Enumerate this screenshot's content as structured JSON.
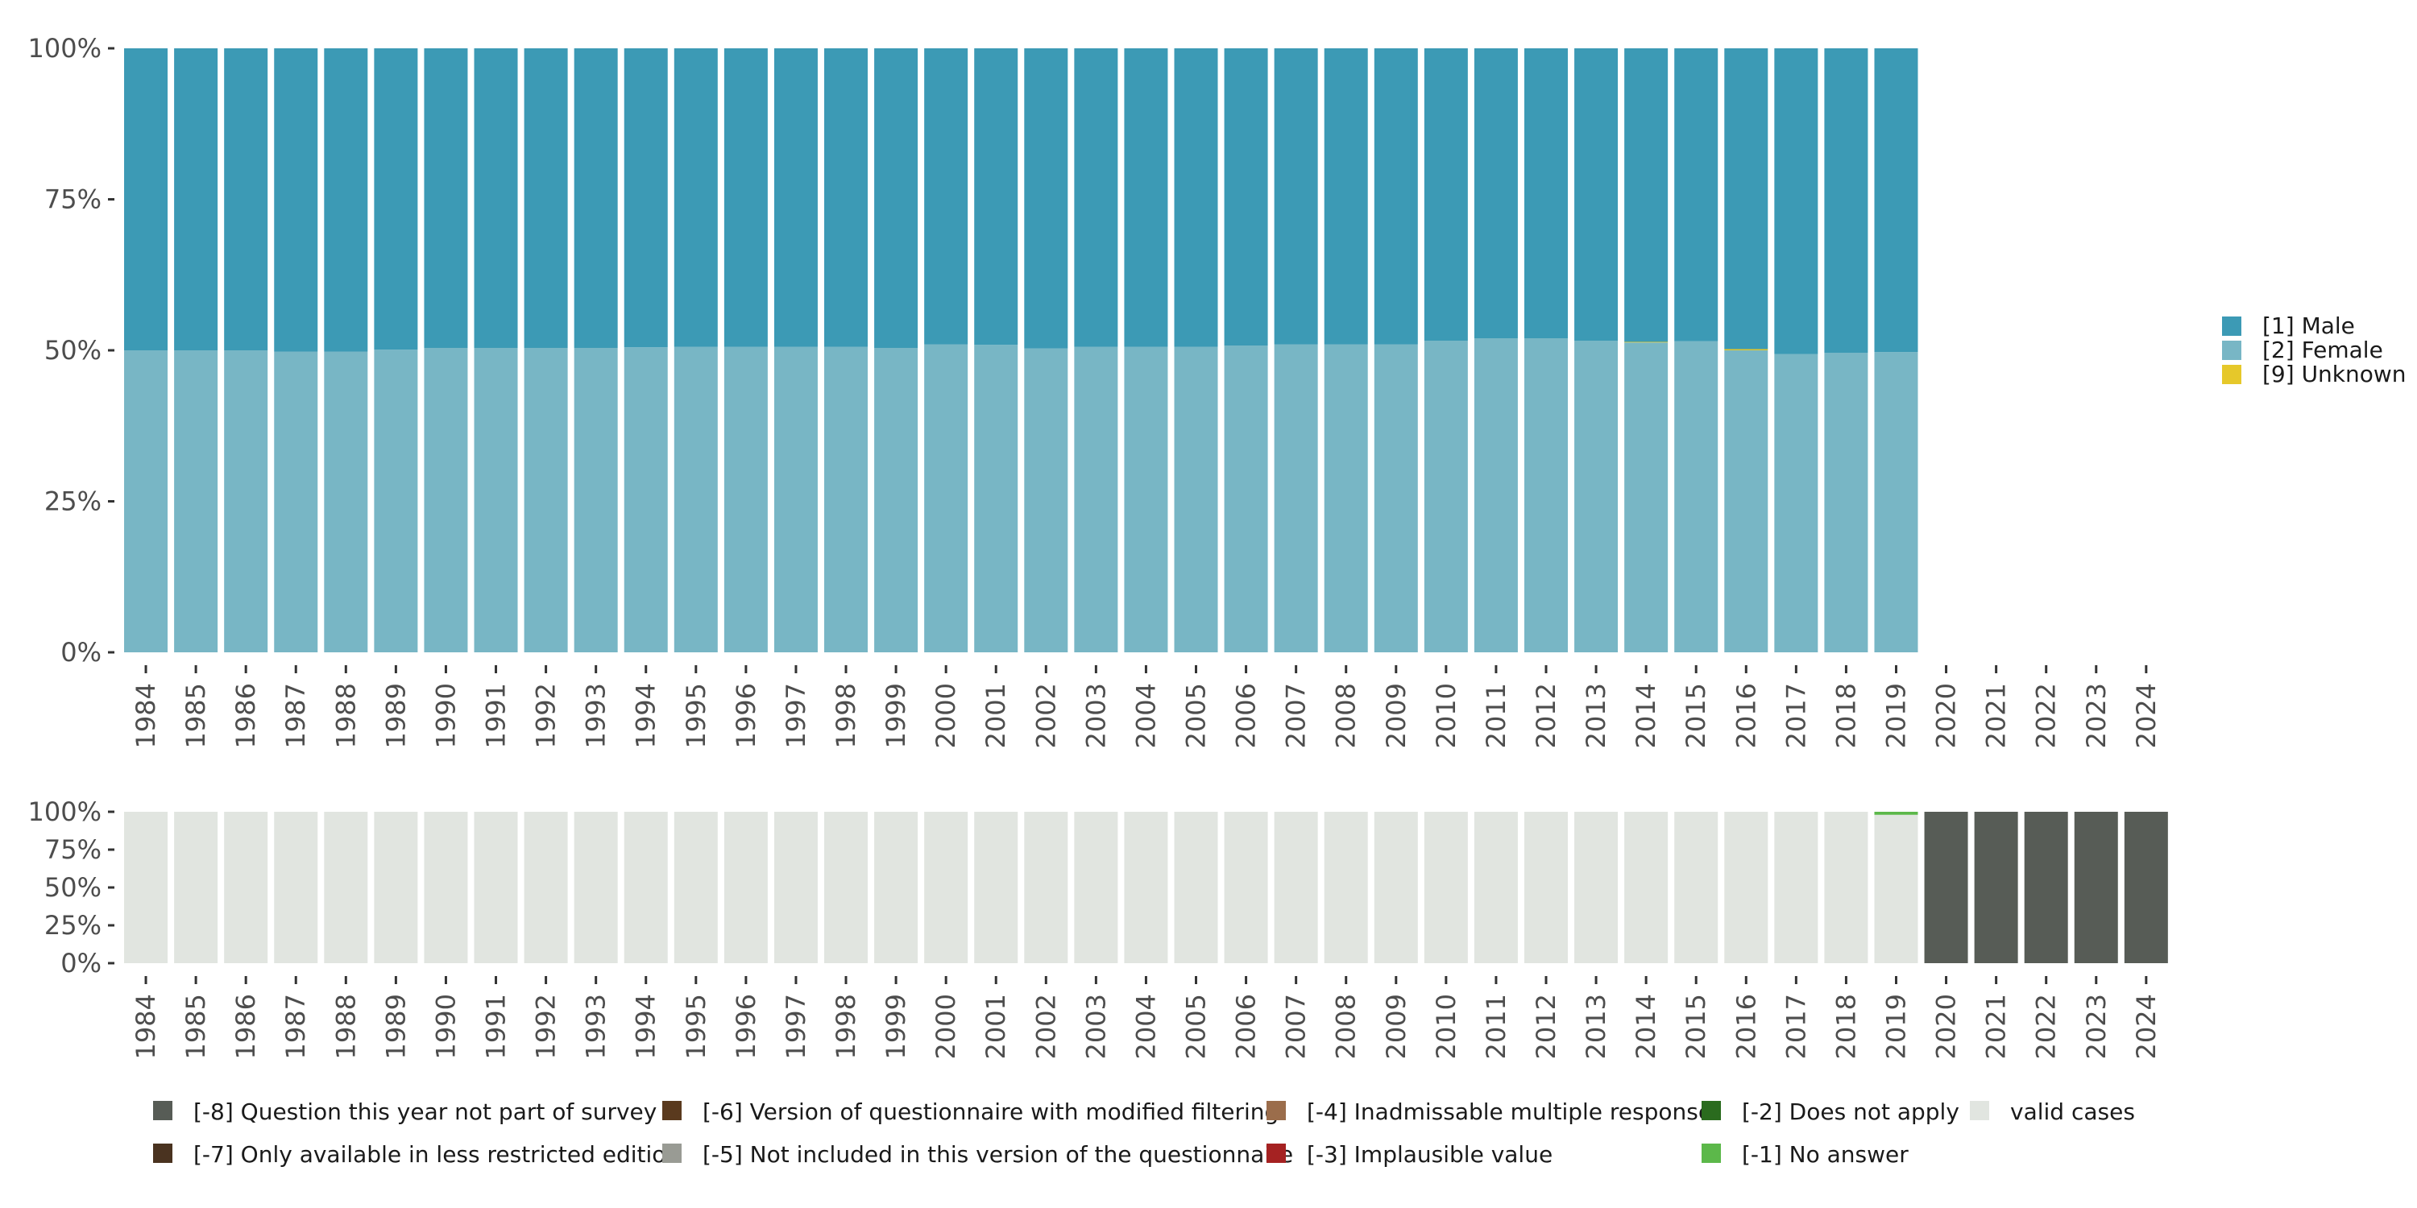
{
  "colors": {
    "male": "#3c9ab5",
    "female": "#78b6c5",
    "unknown": "#e6c82a",
    "valid_cases": "#e1e5e0",
    "q_not_part": "#575c56",
    "version_modified": "#5a3a1e",
    "inadmissable": "#9b6d4b",
    "does_not_apply": "#2a6b1e",
    "only_less_restricted": "#4a3320",
    "not_included": "#999b94",
    "implausible": "#a52222",
    "no_answer": "#5cb84a"
  },
  "chart_data": [
    {
      "type": "bar",
      "stacked": true,
      "x": [
        "1984",
        "1985",
        "1986",
        "1987",
        "1988",
        "1989",
        "1990",
        "1991",
        "1992",
        "1993",
        "1994",
        "1995",
        "1996",
        "1997",
        "1998",
        "1999",
        "2000",
        "2001",
        "2002",
        "2003",
        "2004",
        "2005",
        "2006",
        "2007",
        "2008",
        "2009",
        "2010",
        "2011",
        "2012",
        "2013",
        "2014",
        "2015",
        "2016",
        "2017",
        "2018",
        "2019"
      ],
      "series": [
        {
          "name": "[2] Female",
          "color_key": "female",
          "values": [
            50.0,
            50.0,
            50.0,
            49.8,
            49.8,
            50.1,
            50.4,
            50.4,
            50.4,
            50.4,
            50.5,
            50.6,
            50.6,
            50.6,
            50.6,
            50.4,
            51.0,
            50.9,
            50.3,
            50.6,
            50.6,
            50.6,
            50.8,
            51.0,
            51.0,
            51.0,
            51.6,
            52.0,
            52.0,
            51.6,
            51.3,
            51.5,
            50.0,
            49.4,
            49.6,
            49.7
          ]
        },
        {
          "name": "[9] Unknown",
          "color_key": "unknown",
          "values": [
            0,
            0,
            0,
            0,
            0,
            0,
            0,
            0,
            0,
            0,
            0,
            0,
            0,
            0,
            0,
            0,
            0,
            0,
            0,
            0,
            0,
            0,
            0,
            0,
            0,
            0,
            0,
            0,
            0,
            0,
            0.1,
            0,
            0.2,
            0,
            0,
            0
          ]
        },
        {
          "name": "[1] Male",
          "color_key": "male",
          "values": [
            50.0,
            50.0,
            50.0,
            50.2,
            50.2,
            49.9,
            49.6,
            49.6,
            49.6,
            49.6,
            49.5,
            49.4,
            49.4,
            49.4,
            49.4,
            49.6,
            49.0,
            49.1,
            49.7,
            49.4,
            49.4,
            49.4,
            49.2,
            49.0,
            49.0,
            49.0,
            48.4,
            48.0,
            48.0,
            48.4,
            48.6,
            48.5,
            49.8,
            50.6,
            50.4,
            50.3
          ]
        }
      ],
      "x_ticks": [
        "1984",
        "1985",
        "1986",
        "1987",
        "1988",
        "1989",
        "1990",
        "1991",
        "1992",
        "1993",
        "1994",
        "1995",
        "1996",
        "1997",
        "1998",
        "1999",
        "2000",
        "2001",
        "2002",
        "2003",
        "2004",
        "2005",
        "2006",
        "2007",
        "2008",
        "2009",
        "2010",
        "2011",
        "2012",
        "2013",
        "2014",
        "2015",
        "2016",
        "2017",
        "2018",
        "2019",
        "2020",
        "2021",
        "2022",
        "2023",
        "2024"
      ],
      "y_ticks": [
        "0%",
        "25%",
        "50%",
        "75%",
        "100%"
      ],
      "ylim": [
        0,
        100
      ],
      "legend": {
        "placement": "right",
        "entries": [
          {
            "label": "[1] Male",
            "color_key": "male"
          },
          {
            "label": "[2] Female",
            "color_key": "female"
          },
          {
            "label": "[9] Unknown",
            "color_key": "unknown"
          }
        ]
      }
    },
    {
      "type": "bar",
      "stacked": true,
      "x": [
        "1984",
        "1985",
        "1986",
        "1987",
        "1988",
        "1989",
        "1990",
        "1991",
        "1992",
        "1993",
        "1994",
        "1995",
        "1996",
        "1997",
        "1998",
        "1999",
        "2000",
        "2001",
        "2002",
        "2003",
        "2004",
        "2005",
        "2006",
        "2007",
        "2008",
        "2009",
        "2010",
        "2011",
        "2012",
        "2013",
        "2014",
        "2015",
        "2016",
        "2017",
        "2018",
        "2019",
        "2020",
        "2021",
        "2022",
        "2023",
        "2024"
      ],
      "series": [
        {
          "name": "valid cases",
          "color_key": "valid_cases",
          "values": [
            100,
            100,
            100,
            100,
            100,
            100,
            100,
            100,
            100,
            100,
            100,
            100,
            100,
            100,
            100,
            100,
            100,
            100,
            100,
            100,
            100,
            100,
            100,
            100,
            100,
            100,
            100,
            100,
            100,
            100,
            100,
            100,
            100,
            100,
            100,
            98,
            0,
            0,
            0,
            0,
            0
          ]
        },
        {
          "name": "[-1] No answer",
          "color_key": "no_answer",
          "values": [
            0,
            0,
            0,
            0,
            0,
            0,
            0,
            0,
            0,
            0,
            0,
            0,
            0,
            0,
            0,
            0,
            0,
            0,
            0,
            0,
            0,
            0,
            0,
            0,
            0,
            0,
            0,
            0,
            0,
            0,
            0,
            0,
            0,
            0,
            0,
            2,
            0,
            0,
            0,
            0,
            0
          ]
        },
        {
          "name": "[-8] Question this year not part of survey",
          "color_key": "q_not_part",
          "values": [
            0,
            0,
            0,
            0,
            0,
            0,
            0,
            0,
            0,
            0,
            0,
            0,
            0,
            0,
            0,
            0,
            0,
            0,
            0,
            0,
            0,
            0,
            0,
            0,
            0,
            0,
            0,
            0,
            0,
            0,
            0,
            0,
            0,
            0,
            0,
            0,
            100,
            100,
            100,
            100,
            100
          ]
        }
      ],
      "x_ticks": [
        "1984",
        "1985",
        "1986",
        "1987",
        "1988",
        "1989",
        "1990",
        "1991",
        "1992",
        "1993",
        "1994",
        "1995",
        "1996",
        "1997",
        "1998",
        "1999",
        "2000",
        "2001",
        "2002",
        "2003",
        "2004",
        "2005",
        "2006",
        "2007",
        "2008",
        "2009",
        "2010",
        "2011",
        "2012",
        "2013",
        "2014",
        "2015",
        "2016",
        "2017",
        "2018",
        "2019",
        "2020",
        "2021",
        "2022",
        "2023",
        "2024"
      ],
      "y_ticks": [
        "0%",
        "25%",
        "50%",
        "75%",
        "100%"
      ],
      "ylim": [
        0,
        100
      ],
      "legend": {
        "placement": "bottom",
        "entries": [
          {
            "label": "[-8] Question this year not part of survey",
            "color_key": "q_not_part"
          },
          {
            "label": "[-7] Only available in less restricted edition",
            "color_key": "only_less_restricted"
          },
          {
            "label": "[-6] Version of questionnaire with modified filtering",
            "color_key": "version_modified"
          },
          {
            "label": "[-5] Not included in this version of the questionnaire",
            "color_key": "not_included"
          },
          {
            "label": "[-4] Inadmissable multiple response",
            "color_key": "inadmissable"
          },
          {
            "label": "[-3] Implausible value",
            "color_key": "implausible"
          },
          {
            "label": "[-2] Does not apply",
            "color_key": "does_not_apply"
          },
          {
            "label": "[-1] No answer",
            "color_key": "no_answer"
          },
          {
            "label": "valid cases",
            "color_key": "valid_cases"
          }
        ]
      }
    }
  ]
}
